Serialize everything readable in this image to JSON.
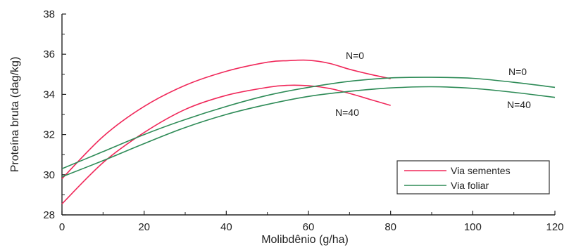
{
  "chart_data": {
    "type": "line",
    "xlabel": "Molibdênio (g/ha)",
    "ylabel": "Proteína bruta (dag/kg)",
    "xlim": [
      0,
      120
    ],
    "ylim": [
      28,
      38
    ],
    "x_ticks": [
      "0",
      "20",
      "40",
      "60",
      "80",
      "100",
      "120"
    ],
    "y_ticks": [
      "28",
      "30",
      "32",
      "34",
      "36",
      "38"
    ],
    "grid": false,
    "legend_position": "bottom-right",
    "colors": {
      "Via sementes": "#f0285a",
      "Via foliar": "#2e8b57"
    },
    "legend": [
      "Via sementes",
      "Via foliar"
    ],
    "series": [
      {
        "name": "Via sementes",
        "curve_label": "N=0",
        "color": "#f0285a",
        "x": [
          0,
          10,
          20,
          30,
          40,
          50,
          55,
          60,
          65,
          70,
          75,
          80
        ],
        "y": [
          29.8,
          31.9,
          33.4,
          34.45,
          35.15,
          35.6,
          35.68,
          35.7,
          35.55,
          35.25,
          35.0,
          34.78
        ]
      },
      {
        "name": "Via sementes",
        "curve_label": "N=40",
        "color": "#f0285a",
        "x": [
          0,
          10,
          20,
          30,
          40,
          50,
          55,
          60,
          65,
          70,
          75,
          80
        ],
        "y": [
          28.55,
          30.6,
          32.1,
          33.25,
          33.95,
          34.35,
          34.45,
          34.43,
          34.3,
          34.05,
          33.75,
          33.45
        ]
      },
      {
        "name": "Via foliar",
        "curve_label": "N=0",
        "color": "#2e8b57",
        "x": [
          0,
          10,
          20,
          30,
          40,
          50,
          60,
          70,
          80,
          90,
          100,
          110,
          120
        ],
        "y": [
          30.3,
          31.15,
          32.0,
          32.75,
          33.4,
          33.95,
          34.35,
          34.65,
          34.82,
          34.85,
          34.8,
          34.6,
          34.35
        ]
      },
      {
        "name": "Via foliar",
        "curve_label": "N=40",
        "color": "#2e8b57",
        "x": [
          0,
          10,
          20,
          30,
          40,
          50,
          60,
          70,
          80,
          90,
          100,
          110,
          120
        ],
        "y": [
          29.9,
          30.7,
          31.55,
          32.35,
          33.0,
          33.5,
          33.9,
          34.15,
          34.32,
          34.38,
          34.3,
          34.1,
          33.85
        ]
      }
    ]
  }
}
